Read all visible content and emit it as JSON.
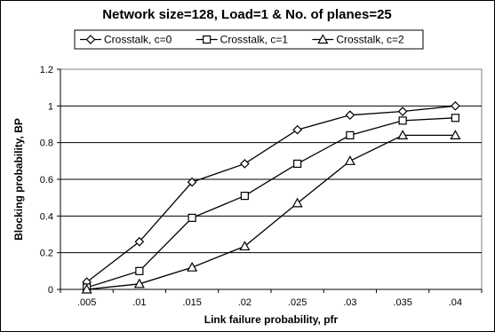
{
  "chart_data": {
    "type": "line",
    "title": "Network size=128, Load=1 & No. of planes=25",
    "xlabel": "Link failure probability, pfr",
    "ylabel": "Blocking probability, BP",
    "categories": [
      ".005",
      ".01",
      ".015",
      ".02",
      ".025",
      ".03",
      ".035",
      ".04"
    ],
    "ylim": [
      0,
      1.2
    ],
    "yticks": [
      "0",
      "0.2",
      "0.4",
      "0.6",
      "0.8",
      "1",
      "1.2"
    ],
    "grid": "horizontal",
    "legend_position": "top",
    "series": [
      {
        "name": "Crosstalk, c=0",
        "marker": "diamond",
        "values": [
          0.04,
          0.26,
          0.585,
          0.685,
          0.87,
          0.95,
          0.97,
          1.0
        ]
      },
      {
        "name": "Crosstalk, c=1",
        "marker": "square",
        "values": [
          0.01,
          0.1,
          0.39,
          0.51,
          0.685,
          0.84,
          0.92,
          0.935
        ]
      },
      {
        "name": "Crosstalk, c=2",
        "marker": "triangle",
        "values": [
          0.0,
          0.03,
          0.12,
          0.235,
          0.47,
          0.7,
          0.84,
          0.84
        ]
      }
    ]
  }
}
